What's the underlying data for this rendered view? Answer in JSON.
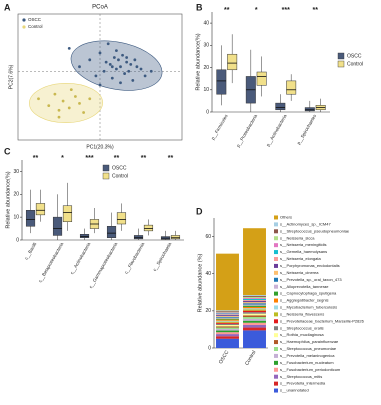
{
  "chart_data": [
    {
      "type": "scatter",
      "panel": "A",
      "title": "PCoA",
      "xlabel": "PC1(20.3%)",
      "ylabel": "PC2(7.6%)",
      "xlim": [
        -0.4,
        0.4
      ],
      "ylim": [
        -0.3,
        0.25
      ],
      "series": [
        {
          "name": "OSCC",
          "color": "#3d5a80",
          "x": [
            -0.15,
            -0.1,
            -0.05,
            -0.02,
            0,
            0.02,
            0.03,
            0.05,
            0.06,
            0.07,
            0.08,
            0.09,
            0.1,
            0.11,
            0.12,
            0.13,
            0.14,
            0.15,
            0.16,
            0.18,
            0.2,
            0.22,
            0.25,
            0.04,
            0.1,
            0.08,
            0.13,
            0.0,
            0.17,
            0.06
          ],
          "y": [
            0.1,
            0.02,
            0.05,
            -0.02,
            0.08,
            0.0,
            0.04,
            0.03,
            -0.03,
            0.06,
            0.01,
            0.05,
            0.02,
            0.07,
            -0.01,
            0.04,
            0.0,
            0.03,
            -0.04,
            0.02,
            0.01,
            -0.02,
            0.0,
            0.12,
            -0.05,
            0.09,
            0.06,
            -0.06,
            0.05,
            0.02
          ]
        },
        {
          "name": "Control",
          "color": "#e8d77a",
          "x": [
            -0.3,
            -0.25,
            -0.22,
            -0.2,
            -0.18,
            -0.15,
            -0.12,
            -0.1,
            -0.08,
            -0.05,
            -0.2,
            -0.14
          ],
          "y": [
            -0.12,
            -0.15,
            -0.1,
            -0.17,
            -0.13,
            -0.16,
            -0.11,
            -0.14,
            -0.18,
            -0.12,
            -0.2,
            -0.08
          ]
        }
      ]
    },
    {
      "type": "box",
      "panel": "B",
      "ylabel": "Relative abundance(%)",
      "categories": [
        "p__Firmicutes",
        "p__Proteobacteria",
        "p__Actinobacteria",
        "p__Spirochaetes"
      ],
      "signif": [
        "**",
        "*",
        "***",
        "**"
      ],
      "ylim": [
        0,
        45
      ],
      "yticks": [
        0,
        10,
        20,
        30,
        40
      ],
      "series": [
        {
          "name": "OSCC",
          "color": "#4a5a7a",
          "min": [
            3,
            0,
            0,
            0
          ],
          "q1": [
            8,
            4,
            1,
            0.5
          ],
          "median": [
            14,
            10,
            2,
            1
          ],
          "q3": [
            19,
            16,
            4,
            2
          ],
          "max": [
            30,
            28,
            8,
            5
          ]
        },
        {
          "name": "Control",
          "color": "#f1e08a",
          "min": [
            13,
            7,
            5,
            0
          ],
          "q1": [
            19,
            12,
            8,
            1
          ],
          "median": [
            22,
            16,
            10,
            2
          ],
          "q3": [
            26,
            18,
            14,
            3
          ],
          "max": [
            35,
            25,
            17,
            6
          ]
        }
      ]
    },
    {
      "type": "box",
      "panel": "C",
      "ylabel": "Relative abundance(%)",
      "categories": [
        "c__Bacilli",
        "c__Betaproteobacteria",
        "c__Actinobacteria",
        "c__Gammaproteobacteria",
        "c__Flavobacteriia",
        "c__Spirochaetia"
      ],
      "signif": [
        "**",
        "*",
        "***",
        "**",
        "**",
        "**"
      ],
      "ylim": [
        0,
        35
      ],
      "yticks": [
        0,
        10,
        20,
        30
      ],
      "series": [
        {
          "name": "OSCC",
          "color": "#4a5a7a",
          "min": [
            3,
            0,
            0,
            0,
            0,
            0
          ],
          "q1": [
            6,
            2,
            1,
            1,
            0.5,
            0.3
          ],
          "median": [
            9,
            5,
            1.5,
            3,
            1,
            0.8
          ],
          "q3": [
            13,
            10,
            2.5,
            6,
            2,
            1.5
          ],
          "max": [
            22,
            20,
            5,
            12,
            5,
            4
          ]
        },
        {
          "name": "Control",
          "color": "#f1e08a",
          "min": [
            8,
            4,
            3,
            4,
            2,
            0
          ],
          "q1": [
            11,
            8,
            5,
            7,
            4,
            0.5
          ],
          "median": [
            13,
            12,
            7,
            9,
            5,
            1
          ],
          "q3": [
            16,
            15,
            9,
            12,
            6.5,
            2
          ],
          "max": [
            22,
            25,
            14,
            16,
            9,
            4
          ]
        }
      ]
    },
    {
      "type": "stacked",
      "panel": "D",
      "ylabel": "Relative abundance (%)",
      "categories": [
        "OSCC",
        "Control"
      ],
      "ylim": [
        0,
        70
      ],
      "yticks": [
        0,
        20,
        40,
        60
      ],
      "series": [
        {
          "name": "Others",
          "color": "#d4a017",
          "values": [
            30.5,
            36
          ]
        },
        {
          "name": "s__Actinomyces_sp._ICM47",
          "color": "#a6cee3",
          "values": [
            0.4,
            0.5
          ]
        },
        {
          "name": "s__Streptococcus_pseudopneumoniae",
          "color": "#8c564b",
          "values": [
            0.4,
            0.5
          ]
        },
        {
          "name": "s__Neisseria_sicca",
          "color": "#b2df8a",
          "values": [
            0.4,
            0.6
          ]
        },
        {
          "name": "s__Neisseria_meningitidis",
          "color": "#e377c2",
          "values": [
            0.5,
            0.5
          ]
        },
        {
          "name": "s__Gemella_haemolysans",
          "color": "#17becf",
          "values": [
            0.4,
            0.6
          ]
        },
        {
          "name": "s__Neisseria_elongata",
          "color": "#fb9a99",
          "values": [
            0.4,
            0.5
          ]
        },
        {
          "name": "s__Porphyromonas_endodontalis",
          "color": "#6a3d9a",
          "values": [
            0.5,
            0.6
          ]
        },
        {
          "name": "s__Neisseria_cinerea",
          "color": "#fdbf6f",
          "values": [
            0.5,
            0.6
          ]
        },
        {
          "name": "s__Prevotella_sp._oral_taxon_473",
          "color": "#1f78b4",
          "values": [
            0.5,
            0.7
          ]
        },
        {
          "name": "s__Alloprevotella_tannerae",
          "color": "#cab2d6",
          "values": [
            0.5,
            0.6
          ]
        },
        {
          "name": "s__Capnocytophaga_sputigena",
          "color": "#33a02c",
          "values": [
            0.5,
            0.7
          ]
        },
        {
          "name": "s__Aggregatibacter_segnis",
          "color": "#ff7f00",
          "values": [
            0.6,
            0.7
          ]
        },
        {
          "name": "s__Mycobacterium_tuberculosis",
          "color": "#9edae5",
          "values": [
            0.5,
            0.6
          ]
        },
        {
          "name": "s__Neisseria_flavescens",
          "color": "#bcbd22",
          "values": [
            0.6,
            0.7
          ]
        },
        {
          "name": "s__Prevotellaceae_bacterium_Marseille-P2826",
          "color": "#e31a1c",
          "values": [
            0.6,
            0.8
          ]
        },
        {
          "name": "s__Streptococcus_oralis",
          "color": "#7f7f7f",
          "values": [
            0.6,
            0.8
          ]
        },
        {
          "name": "s__Rothia_mucilaginosa",
          "color": "#ffff99",
          "values": [
            0.7,
            0.9
          ]
        },
        {
          "name": "s__Haemophilus_parainfluenzae",
          "color": "#b15928",
          "values": [
            0.7,
            0.9
          ]
        },
        {
          "name": "s__Streptococcus_pneumoniae",
          "color": "#98df8a",
          "values": [
            0.8,
            1.0
          ]
        },
        {
          "name": "s__Prevotella_melaninogenica",
          "color": "#c5b0d5",
          "values": [
            0.8,
            1.0
          ]
        },
        {
          "name": "s__Fusobacterium_nucleatum",
          "color": "#2ca02c",
          "values": [
            0.9,
            1.1
          ]
        },
        {
          "name": "s__Fusobacterium_periodonticum",
          "color": "#ff9896",
          "values": [
            1.0,
            1.2
          ]
        },
        {
          "name": "s__Streptococcus_mitis",
          "color": "#9467bd",
          "values": [
            1.2,
            1.4
          ]
        },
        {
          "name": "s__Prevotella_intermedia",
          "color": "#d62728",
          "values": [
            1.3,
            1.5
          ]
        },
        {
          "name": "s__unannotated",
          "color": "#3b5bdb",
          "values": [
            5,
            9.5
          ]
        }
      ]
    }
  ]
}
